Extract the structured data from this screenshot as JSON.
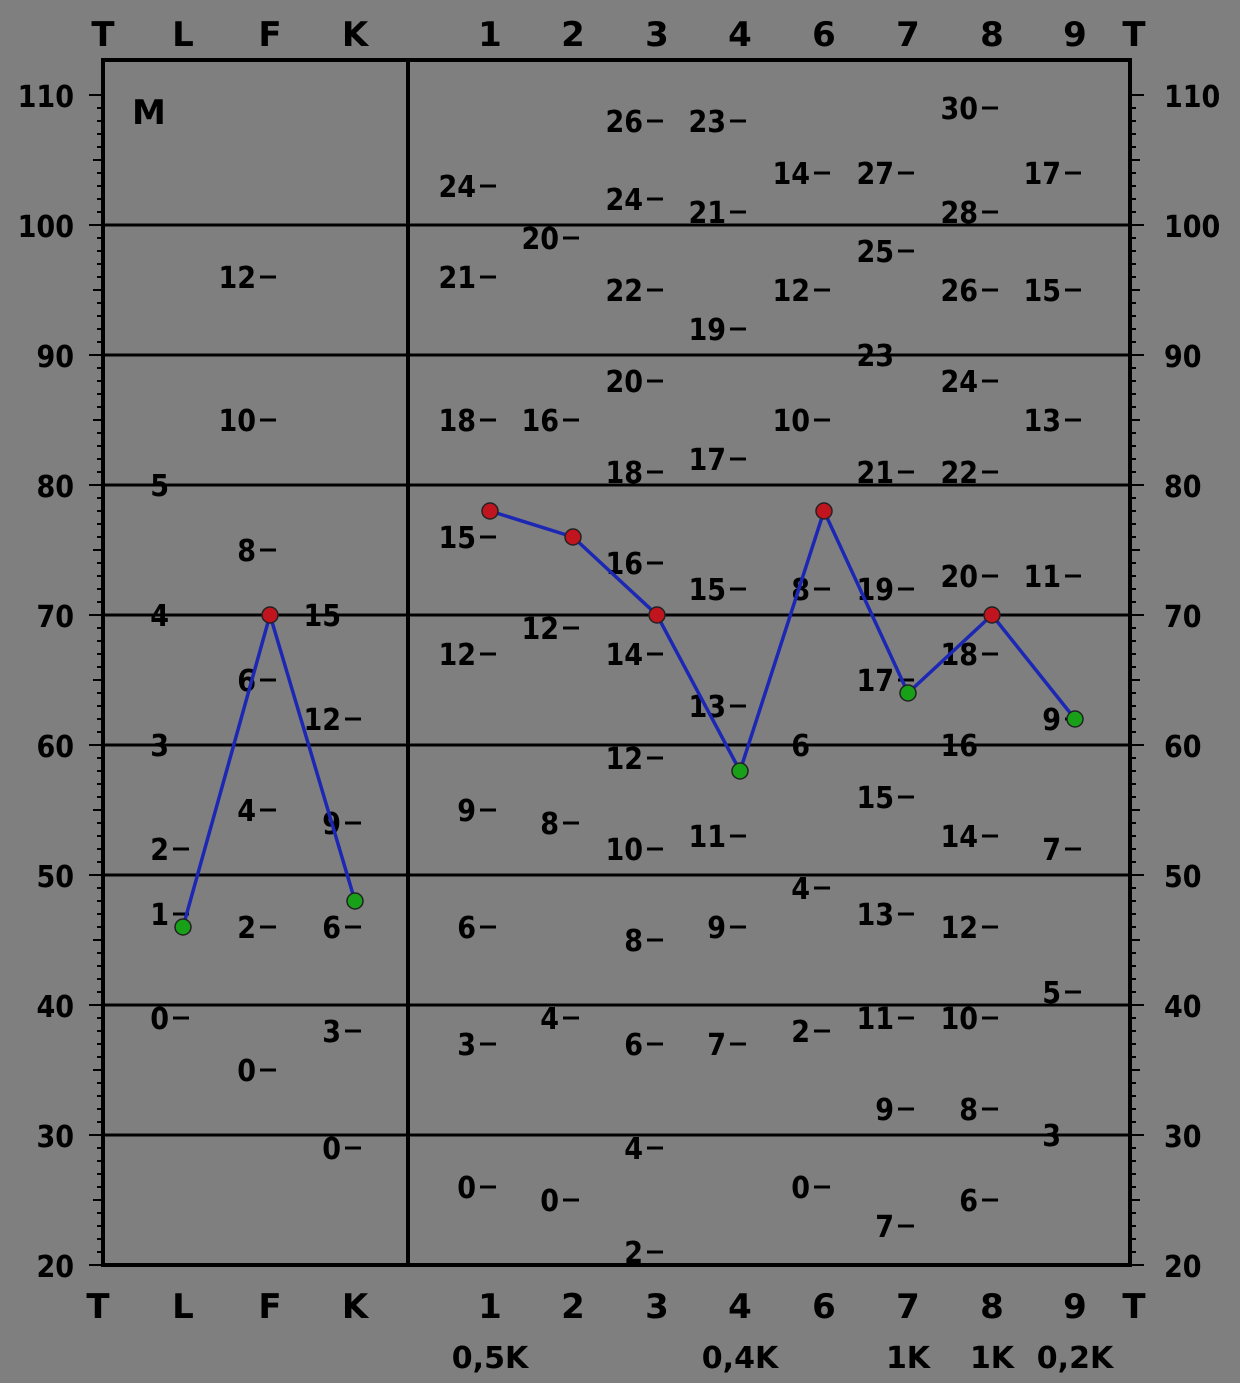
{
  "chart_data": {
    "type": "line",
    "panel_label": "M",
    "y_ticks": [
      "20",
      "30",
      "40",
      "50",
      "60",
      "70",
      "80",
      "90",
      "100",
      "110"
    ],
    "y_tick_values": [
      20,
      30,
      40,
      50,
      60,
      70,
      80,
      90,
      100,
      110
    ],
    "ylim": [
      20,
      110
    ],
    "grid": true,
    "x_end_label": "T",
    "validity": {
      "categories": [
        "L",
        "F",
        "K"
      ],
      "values": [
        46,
        70,
        48
      ]
    },
    "clinical": {
      "categories": [
        "1",
        "2",
        "3",
        "4",
        "6",
        "7",
        "8",
        "9"
      ],
      "values": [
        78,
        76,
        70,
        58,
        78,
        64,
        70,
        62
      ],
      "k_corrections": [
        "0,5K",
        "",
        "",
        "0,4K",
        "",
        "1K",
        "1K",
        "0,2K"
      ]
    },
    "point_colors": {
      "high": "#c0141e",
      "low": "#18a018",
      "line": "#1c28b4"
    },
    "raw_scores": {
      "L": [
        {
          "label": "5",
          "t": 80
        },
        {
          "label": "4",
          "t": 70
        },
        {
          "label": "3",
          "t": 60
        },
        {
          "label": "2",
          "t": 52
        },
        {
          "label": "1",
          "t": 47
        },
        {
          "label": "0",
          "t": 39
        }
      ],
      "F": [
        {
          "label": "12",
          "t": 96
        },
        {
          "label": "10",
          "t": 85
        },
        {
          "label": "8",
          "t": 75
        },
        {
          "label": "6",
          "t": 65
        },
        {
          "label": "4",
          "t": 55
        },
        {
          "label": "2",
          "t": 46
        },
        {
          "label": "0",
          "t": 35
        }
      ],
      "K": [
        {
          "label": "15",
          "t": 70
        },
        {
          "label": "12",
          "t": 62
        },
        {
          "label": "9",
          "t": 54
        },
        {
          "label": "6",
          "t": 46
        },
        {
          "label": "3",
          "t": 38
        },
        {
          "label": "0",
          "t": 29
        }
      ],
      "1": [
        {
          "label": "24",
          "t": 103
        },
        {
          "label": "21",
          "t": 96
        },
        {
          "label": "18",
          "t": 85
        },
        {
          "label": "15",
          "t": 76
        },
        {
          "label": "12",
          "t": 67
        },
        {
          "label": "9",
          "t": 55
        },
        {
          "label": "6",
          "t": 46
        },
        {
          "label": "3",
          "t": 37
        },
        {
          "label": "0",
          "t": 26
        }
      ],
      "2": [
        {
          "label": "20",
          "t": 99
        },
        {
          "label": "16",
          "t": 85
        },
        {
          "label": "12",
          "t": 69
        },
        {
          "label": "8",
          "t": 54
        },
        {
          "label": "4",
          "t": 39
        },
        {
          "label": "0",
          "t": 25
        }
      ],
      "3": [
        {
          "label": "26",
          "t": 108
        },
        {
          "label": "24",
          "t": 102
        },
        {
          "label": "22",
          "t": 95
        },
        {
          "label": "20",
          "t": 88
        },
        {
          "label": "18",
          "t": 81
        },
        {
          "label": "16",
          "t": 74
        },
        {
          "label": "14",
          "t": 67
        },
        {
          "label": "12",
          "t": 59
        },
        {
          "label": "10",
          "t": 52
        },
        {
          "label": "8",
          "t": 45
        },
        {
          "label": "6",
          "t": 37
        },
        {
          "label": "4",
          "t": 29
        },
        {
          "label": "2",
          "t": 21
        }
      ],
      "4": [
        {
          "label": "23",
          "t": 108
        },
        {
          "label": "21",
          "t": 101
        },
        {
          "label": "19",
          "t": 92
        },
        {
          "label": "17",
          "t": 82
        },
        {
          "label": "15",
          "t": 72
        },
        {
          "label": "13",
          "t": 63
        },
        {
          "label": "11",
          "t": 53
        },
        {
          "label": "9",
          "t": 46
        },
        {
          "label": "7",
          "t": 37
        }
      ],
      "6": [
        {
          "label": "14",
          "t": 104
        },
        {
          "label": "12",
          "t": 95
        },
        {
          "label": "10",
          "t": 85
        },
        {
          "label": "8",
          "t": 72
        },
        {
          "label": "6",
          "t": 60
        },
        {
          "label": "4",
          "t": 49
        },
        {
          "label": "2",
          "t": 38
        },
        {
          "label": "0",
          "t": 26
        }
      ],
      "7": [
        {
          "label": "27",
          "t": 104
        },
        {
          "label": "25",
          "t": 98
        },
        {
          "label": "23",
          "t": 90
        },
        {
          "label": "21",
          "t": 81
        },
        {
          "label": "19",
          "t": 72
        },
        {
          "label": "17",
          "t": 65
        },
        {
          "label": "15",
          "t": 56
        },
        {
          "label": "13",
          "t": 47
        },
        {
          "label": "11",
          "t": 39
        },
        {
          "label": "9",
          "t": 32
        },
        {
          "label": "7",
          "t": 23
        }
      ],
      "8": [
        {
          "label": "30",
          "t": 109
        },
        {
          "label": "28",
          "t": 101
        },
        {
          "label": "26",
          "t": 95
        },
        {
          "label": "24",
          "t": 88
        },
        {
          "label": "22",
          "t": 81
        },
        {
          "label": "20",
          "t": 73
        },
        {
          "label": "18",
          "t": 67
        },
        {
          "label": "16",
          "t": 60
        },
        {
          "label": "14",
          "t": 53
        },
        {
          "label": "12",
          "t": 46
        },
        {
          "label": "10",
          "t": 39
        },
        {
          "label": "8",
          "t": 32
        },
        {
          "label": "6",
          "t": 25
        }
      ],
      "9": [
        {
          "label": "17",
          "t": 104
        },
        {
          "label": "15",
          "t": 95
        },
        {
          "label": "13",
          "t": 85
        },
        {
          "label": "11",
          "t": 73
        },
        {
          "label": "9",
          "t": 62
        },
        {
          "label": "7",
          "t": 52
        },
        {
          "label": "5",
          "t": 41
        },
        {
          "label": "3",
          "t": 30
        }
      ]
    }
  }
}
